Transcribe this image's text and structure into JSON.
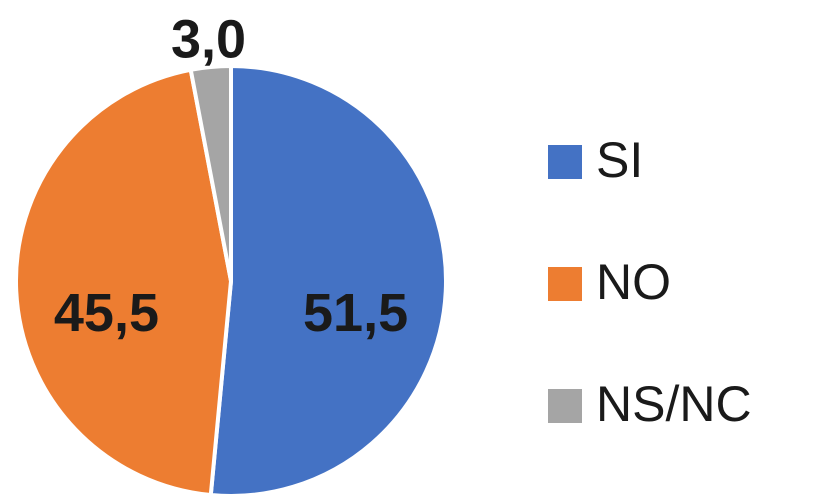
{
  "chart_data": {
    "type": "pie",
    "categories": [
      "SI",
      "NO",
      "NS/NC"
    ],
    "values": [
      51.5,
      45.5,
      3.0
    ],
    "value_labels": [
      "51,5",
      "45,5",
      "3,0"
    ],
    "colors": [
      "#4472c4",
      "#ed7d31",
      "#a5a5a5"
    ],
    "legend": "right"
  }
}
